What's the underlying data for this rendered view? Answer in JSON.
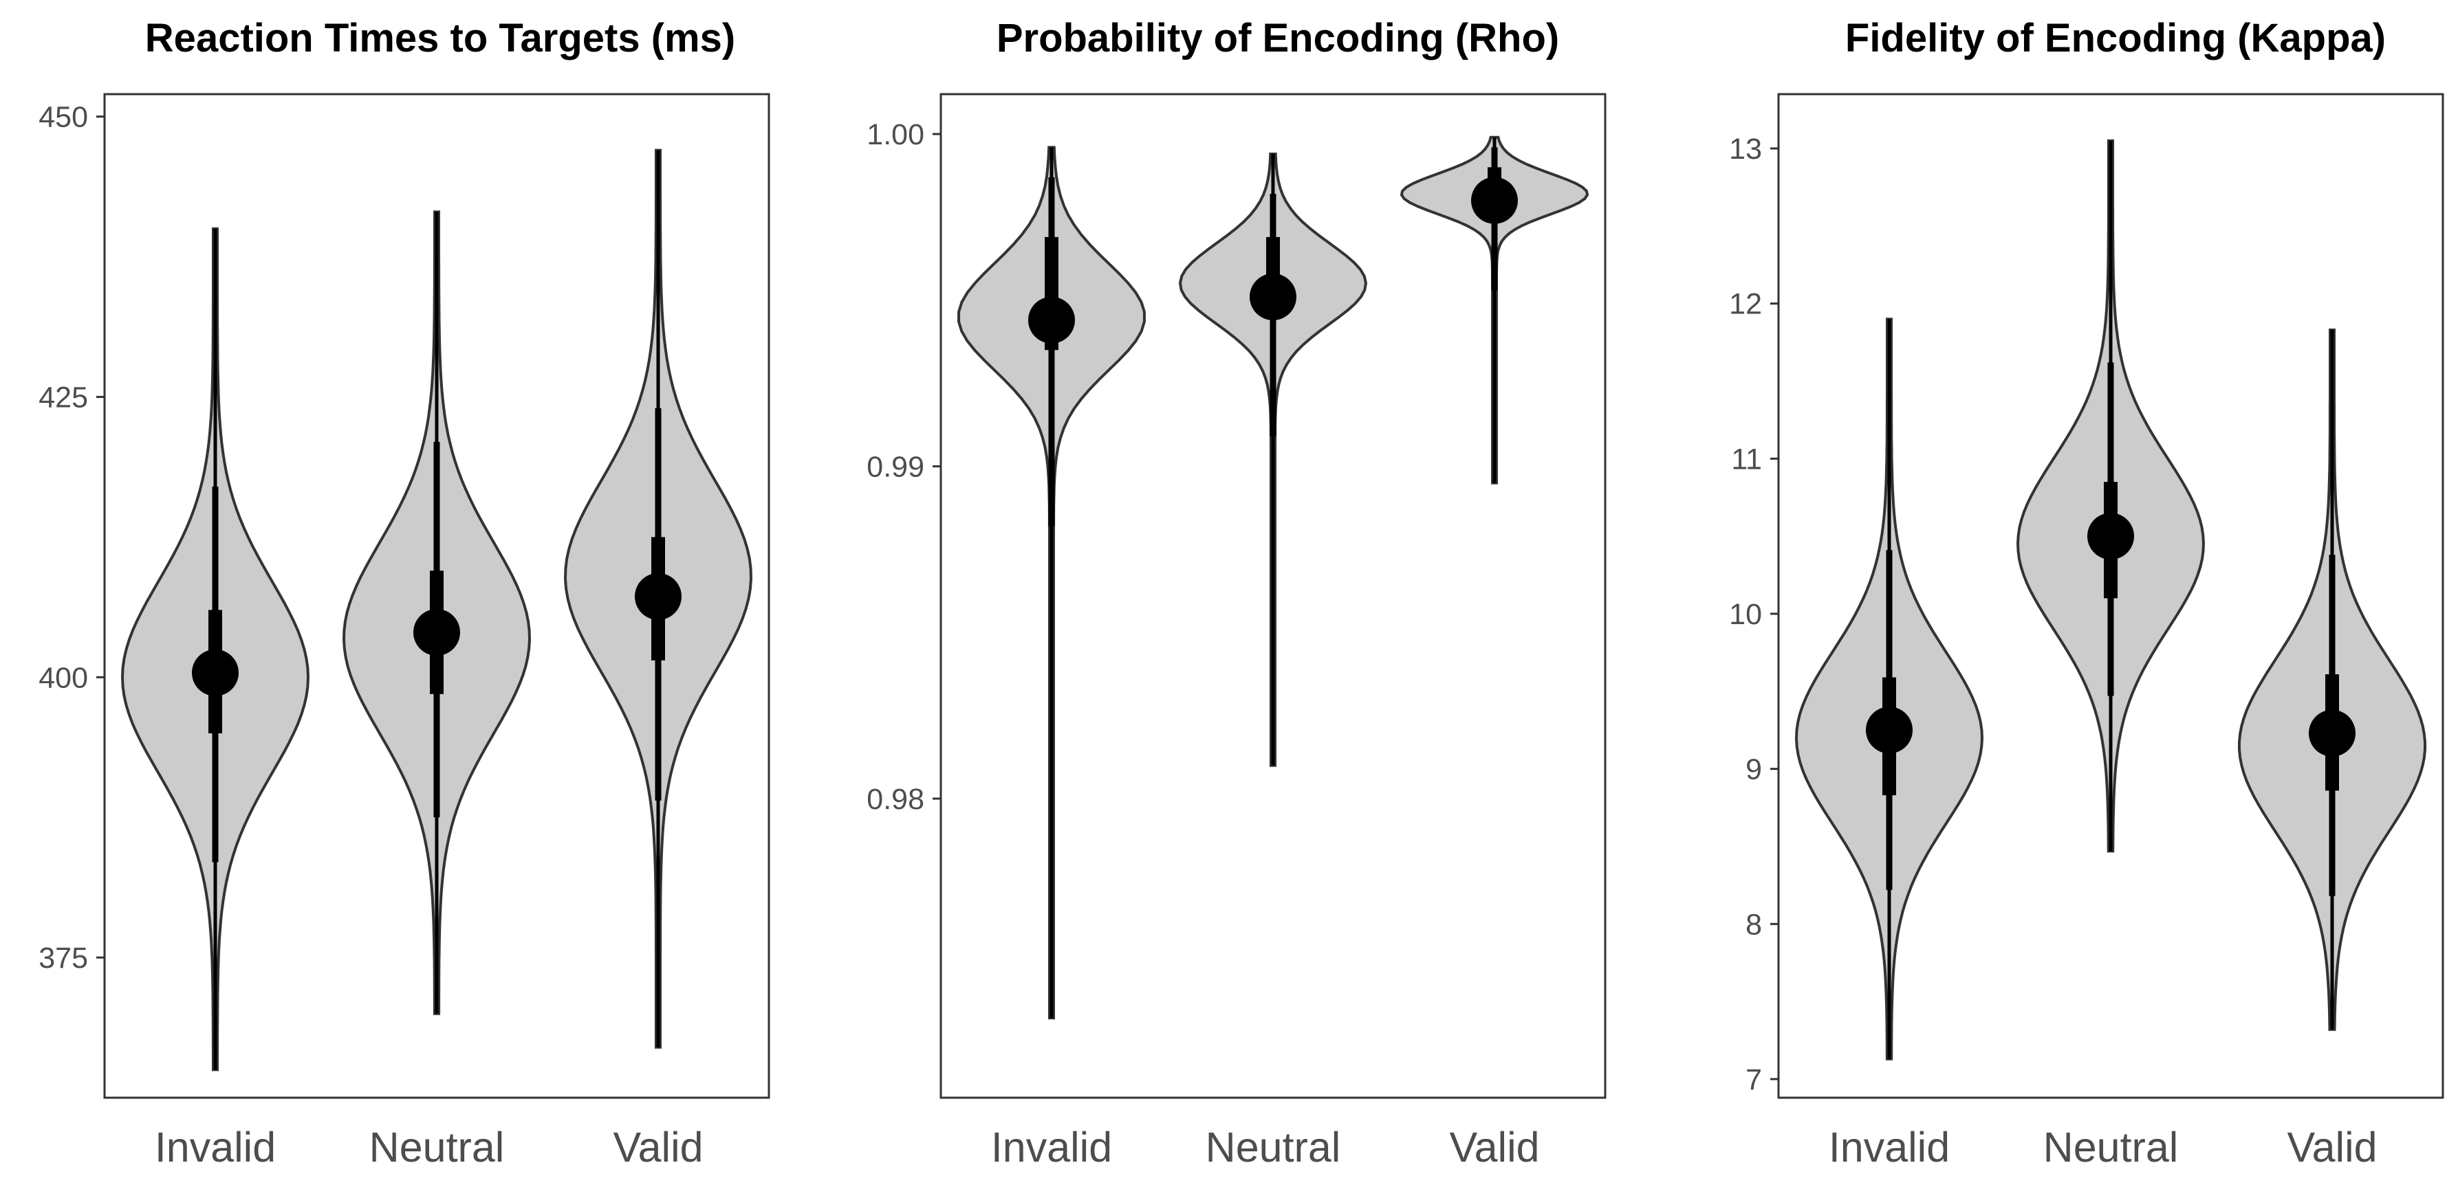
{
  "colors": {
    "violin_fill": "#cccccc",
    "violin_stroke": "#333333",
    "interval": "#000000",
    "panel_border": "#333333",
    "tick_text": "#4d4d4d"
  },
  "chart_data": [
    {
      "type": "violin",
      "title": "Reaction Times to Targets (ms)",
      "xlabel": "",
      "ylabel": "",
      "categories": [
        "Invalid",
        "Neutral",
        "Valid"
      ],
      "ylim": [
        362.5,
        452
      ],
      "yticks": [
        375,
        400,
        425,
        450
      ],
      "ytick_labels": [
        "375",
        "400",
        "425",
        "450"
      ],
      "grid": false,
      "series": [
        {
          "name": "Invalid",
          "min": 365,
          "max": 440,
          "median": 400.4,
          "inner_low": 395,
          "inner_high": 406,
          "outer_low": 383.5,
          "outer_high": 417,
          "mode": 400,
          "spread": 8.5
        },
        {
          "name": "Neutral",
          "min": 370,
          "max": 441.5,
          "median": 404,
          "inner_low": 398.5,
          "inner_high": 409.5,
          "outer_low": 387.5,
          "outer_high": 421,
          "mode": 403.5,
          "spread": 8.5
        },
        {
          "name": "Valid",
          "min": 367,
          "max": 447,
          "median": 407.2,
          "inner_low": 401.5,
          "inner_high": 412.5,
          "outer_low": 389,
          "outer_high": 424,
          "mode": 409,
          "spread": 8.5
        }
      ]
    },
    {
      "type": "violin",
      "title": "Probability of Encoding (Rho)",
      "xlabel": "",
      "ylabel": "",
      "categories": [
        "Invalid",
        "Neutral",
        "Valid"
      ],
      "ylim": [
        0.971,
        1.0012
      ],
      "yticks": [
        0.98,
        0.99,
        1.0
      ],
      "ytick_labels": [
        "0.98",
        "0.99",
        "1.00"
      ],
      "grid": false,
      "series": [
        {
          "name": "Invalid",
          "min": 0.9734,
          "max": 0.9996,
          "median": 0.9944,
          "inner_low": 0.9935,
          "inner_high": 0.9969,
          "outer_low": 0.9882,
          "outer_high": 0.9987,
          "mode": 0.9945,
          "spread": 0.0016
        },
        {
          "name": "Neutral",
          "min": 0.981,
          "max": 0.9994,
          "median": 0.9951,
          "inner_low": 0.9945,
          "inner_high": 0.9969,
          "outer_low": 0.9909,
          "outer_high": 0.9982,
          "mode": 0.9955,
          "spread": 0.0012
        },
        {
          "name": "Valid",
          "min": 0.9895,
          "max": 0.9999,
          "median": 0.998,
          "inner_low": 0.9976,
          "inner_high": 0.999,
          "outer_low": 0.9953,
          "outer_high": 0.9996,
          "mode": 0.9982,
          "spread": 0.0006
        }
      ]
    },
    {
      "type": "violin",
      "title": "Fidelity of Encoding (Kappa)",
      "xlabel": "",
      "ylabel": "",
      "categories": [
        "Invalid",
        "Neutral",
        "Valid"
      ],
      "ylim": [
        6.88,
        13.35
      ],
      "yticks": [
        7,
        8,
        9,
        10,
        11,
        12,
        13
      ],
      "ytick_labels": [
        "7",
        "8",
        "9",
        "10",
        "11",
        "12",
        "13"
      ],
      "grid": false,
      "series": [
        {
          "name": "Invalid",
          "min": 7.13,
          "max": 11.9,
          "median": 9.25,
          "inner_low": 8.83,
          "inner_high": 9.59,
          "outer_low": 8.22,
          "outer_high": 10.41,
          "mode": 9.2,
          "spread": 0.55
        },
        {
          "name": "Neutral",
          "min": 8.47,
          "max": 13.05,
          "median": 10.5,
          "inner_low": 10.1,
          "inner_high": 10.85,
          "outer_low": 9.47,
          "outer_high": 11.62,
          "mode": 10.45,
          "spread": 0.55
        },
        {
          "name": "Valid",
          "min": 7.32,
          "max": 11.83,
          "median": 9.23,
          "inner_low": 8.86,
          "inner_high": 9.61,
          "outer_low": 8.18,
          "outer_high": 10.38,
          "mode": 9.15,
          "spread": 0.55
        }
      ]
    }
  ]
}
